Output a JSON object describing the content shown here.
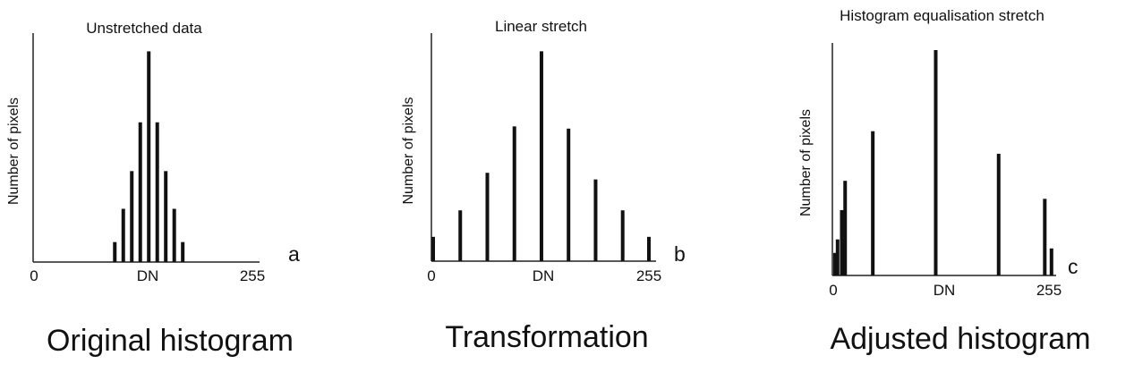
{
  "chart_data": [
    {
      "type": "bar",
      "title": "Unstretched data",
      "xlabel": "DN",
      "ylabel": "Number of pixels",
      "panel_letter": "a",
      "caption": "Original histogram",
      "x_ticks": [
        "0",
        "255"
      ],
      "xlim": [
        0,
        255
      ],
      "ylim": [
        0,
        100
      ],
      "grid": false,
      "x": [
        93,
        103,
        113,
        123,
        133,
        143,
        153,
        163,
        173
      ],
      "values": [
        9,
        24,
        41,
        63,
        95,
        63,
        41,
        24,
        9
      ]
    },
    {
      "type": "bar",
      "title": "Linear stretch",
      "xlabel": "DN",
      "ylabel": "Number of pixels",
      "panel_letter": "b",
      "caption": "Transformation",
      "x_ticks": [
        "0",
        "255"
      ],
      "xlim": [
        0,
        255
      ],
      "ylim": [
        0,
        100
      ],
      "grid": false,
      "x": [
        0,
        32,
        64,
        96,
        128,
        160,
        192,
        224,
        255
      ],
      "values": [
        11,
        23,
        40,
        61,
        95,
        60,
        37,
        23,
        11
      ]
    },
    {
      "type": "bar",
      "title": "Histogram equalisation stretch",
      "xlabel": "DN",
      "ylabel": "Number of pixels",
      "panel_letter": "c",
      "caption": "Adjusted histogram",
      "x_ticks": [
        "0",
        "255"
      ],
      "xlim": [
        0,
        255
      ],
      "ylim": [
        0,
        100
      ],
      "grid": false,
      "x": [
        0,
        3,
        8,
        12,
        45,
        120,
        195,
        250,
        258
      ],
      "values": [
        10,
        16,
        29,
        42,
        64,
        100,
        54,
        34,
        12
      ]
    }
  ]
}
